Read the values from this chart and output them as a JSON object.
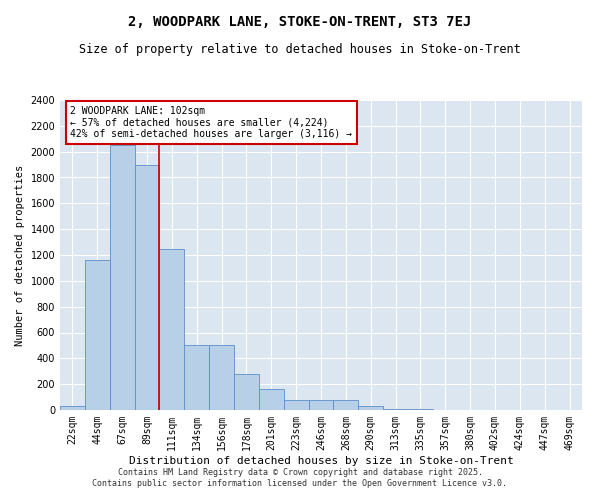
{
  "title1": "2, WOODPARK LANE, STOKE-ON-TRENT, ST3 7EJ",
  "title2": "Size of property relative to detached houses in Stoke-on-Trent",
  "xlabel": "Distribution of detached houses by size in Stoke-on-Trent",
  "ylabel": "Number of detached properties",
  "categories": [
    "22sqm",
    "44sqm",
    "67sqm",
    "89sqm",
    "111sqm",
    "134sqm",
    "156sqm",
    "178sqm",
    "201sqm",
    "223sqm",
    "246sqm",
    "268sqm",
    "290sqm",
    "313sqm",
    "335sqm",
    "357sqm",
    "380sqm",
    "402sqm",
    "424sqm",
    "447sqm",
    "469sqm"
  ],
  "values": [
    30,
    1160,
    2050,
    1900,
    1250,
    500,
    500,
    280,
    160,
    75,
    75,
    80,
    30,
    10,
    5,
    2,
    2,
    1,
    0,
    0,
    0
  ],
  "bar_color": "#b8cfe8",
  "bar_edge_color": "#5b8fc7",
  "background_color": "#dce6f1",
  "grid_color": "#ffffff",
  "vline_color": "#cc0000",
  "annotation_text": "2 WOODPARK LANE: 102sqm\n← 57% of detached houses are smaller (4,224)\n42% of semi-detached houses are larger (3,116) →",
  "annotation_box_color": "#cc0000",
  "ylim": [
    0,
    2400
  ],
  "yticks": [
    0,
    200,
    400,
    600,
    800,
    1000,
    1200,
    1400,
    1600,
    1800,
    2000,
    2200,
    2400
  ],
  "footer1": "Contains HM Land Registry data © Crown copyright and database right 2025.",
  "footer2": "Contains public sector information licensed under the Open Government Licence v3.0.",
  "title1_fontsize": 10,
  "title2_fontsize": 8.5,
  "xlabel_fontsize": 8,
  "ylabel_fontsize": 7.5,
  "tick_fontsize": 7,
  "annotation_fontsize": 7,
  "footer_fontsize": 6
}
